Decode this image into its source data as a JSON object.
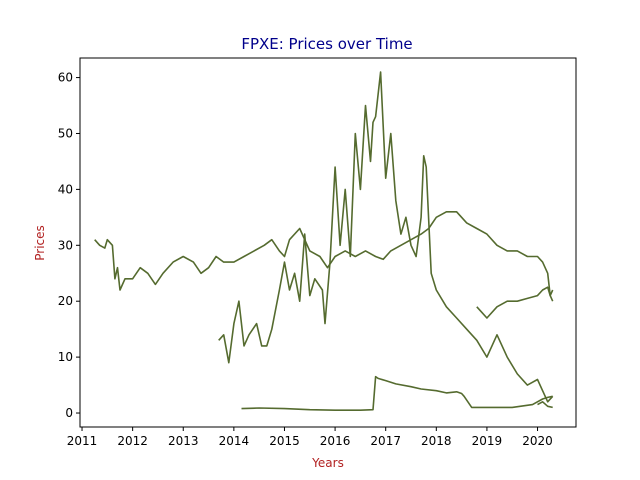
{
  "chart_data": {
    "type": "line",
    "title": "FPXE: Prices over Time",
    "xlabel": "Years",
    "ylabel": "Prices",
    "xlim": [
      2010.96,
      2020.76
    ],
    "ylim": [
      -2.5,
      63.5
    ],
    "x_ticks": [
      2011,
      2012,
      2013,
      2014,
      2015,
      2016,
      2017,
      2018,
      2019,
      2020
    ],
    "y_ticks": [
      0,
      10,
      20,
      30,
      40,
      50,
      60
    ],
    "grid": false,
    "legend": "none",
    "colors": {
      "line": "#556b2f",
      "title": "#00008b",
      "axis_label": "#b22222",
      "frame": "#000000"
    },
    "series": [
      {
        "x": [
          2011.25,
          2011.35,
          2011.45,
          2011.5,
          2011.6,
          2011.65,
          2011.7,
          2011.75,
          2011.85,
          2012.0,
          2012.15,
          2012.3,
          2012.45,
          2012.6,
          2012.8,
          2013.0,
          2013.2,
          2013.35,
          2013.5,
          2013.65,
          2013.8,
          2014.0,
          2014.2,
          2014.4,
          2014.6,
          2014.75,
          2014.9,
          2015.0,
          2015.1,
          2015.3,
          2015.5,
          2015.7,
          2015.85,
          2016.0,
          2016.2,
          2016.4,
          2016.6,
          2016.8,
          2016.95,
          2017.1,
          2017.3,
          2017.5,
          2017.7,
          2017.85,
          2018.0,
          2018.2,
          2018.4,
          2018.6,
          2018.8,
          2019.0,
          2019.2,
          2019.4,
          2019.6,
          2019.8,
          2020.0,
          2020.1,
          2020.2,
          2020.25,
          2020.3
        ],
        "y": [
          31,
          30,
          29.5,
          31,
          30,
          24,
          26,
          22,
          24,
          24,
          26,
          25,
          23,
          25,
          27,
          28,
          27,
          25,
          26,
          28,
          27,
          27,
          28,
          29,
          30,
          31,
          29,
          28,
          31,
          33,
          29,
          28,
          26,
          28,
          29,
          28,
          29,
          28,
          27.5,
          29,
          30,
          31,
          32,
          33,
          35,
          36,
          36,
          34,
          33,
          32,
          30,
          29,
          29,
          28,
          28,
          27,
          25,
          21,
          22
        ]
      },
      {
        "x": [
          2013.7,
          2013.8,
          2013.9,
          2014.0,
          2014.1,
          2014.2,
          2014.3,
          2014.45,
          2014.55,
          2014.65,
          2014.75,
          2014.9,
          2015.0,
          2015.1,
          2015.2,
          2015.3,
          2015.4,
          2015.5,
          2015.6,
          2015.75,
          2015.8,
          2015.9,
          2016.0,
          2016.1,
          2016.2,
          2016.3,
          2016.4,
          2016.5,
          2016.6,
          2016.7,
          2016.75,
          2016.8,
          2016.9,
          2017.0,
          2017.1,
          2017.2,
          2017.3,
          2017.4,
          2017.5,
          2017.6,
          2017.7,
          2017.75,
          2017.8,
          2017.9,
          2018.0,
          2018.2,
          2018.4,
          2018.6,
          2018.8,
          2019.0,
          2019.2,
          2019.4,
          2019.6,
          2019.8,
          2020.0,
          2020.1,
          2020.2,
          2020.3
        ],
        "y": [
          13,
          14,
          9,
          16,
          20,
          12,
          14,
          16,
          12,
          12,
          15,
          22,
          27,
          22,
          25,
          20,
          32,
          21,
          24,
          22,
          16,
          27,
          44,
          30,
          40,
          28,
          50,
          40,
          55,
          45,
          52,
          53,
          61,
          42,
          50,
          38,
          32,
          35,
          30,
          28,
          35,
          46,
          44,
          25,
          22,
          19,
          17,
          15,
          13,
          10,
          14,
          10,
          7,
          5,
          6,
          4,
          2,
          3
        ]
      },
      {
        "x": [
          2018.8,
          2018.9,
          2019.0,
          2019.2,
          2019.4,
          2019.6,
          2019.8,
          2020.0,
          2020.1,
          2020.2,
          2020.25,
          2020.3
        ],
        "y": [
          19,
          18,
          17,
          19,
          20,
          20,
          20.5,
          21,
          22,
          22.5,
          21,
          20
        ]
      },
      {
        "x": [
          2014.15,
          2014.5,
          2015.0,
          2015.5,
          2016.0,
          2016.5,
          2016.75,
          2016.8,
          2016.85,
          2017.0,
          2017.2,
          2017.5,
          2017.7,
          2018.0,
          2018.2,
          2018.4,
          2018.5,
          2018.55,
          2018.7,
          2019.0,
          2019.5,
          2019.9,
          2020.0,
          2020.1,
          2020.2,
          2020.3
        ],
        "y": [
          0.8,
          0.9,
          0.8,
          0.6,
          0.5,
          0.5,
          0.6,
          6.5,
          6.2,
          5.8,
          5.2,
          4.7,
          4.3,
          4,
          3.6,
          3.8,
          3.5,
          3,
          1,
          1,
          1,
          1.5,
          2,
          2.5,
          2.8,
          3
        ]
      },
      {
        "x": [
          2020.0,
          2020.1,
          2020.2,
          2020.3
        ],
        "y": [
          1.5,
          2,
          1.2,
          1
        ]
      }
    ]
  }
}
